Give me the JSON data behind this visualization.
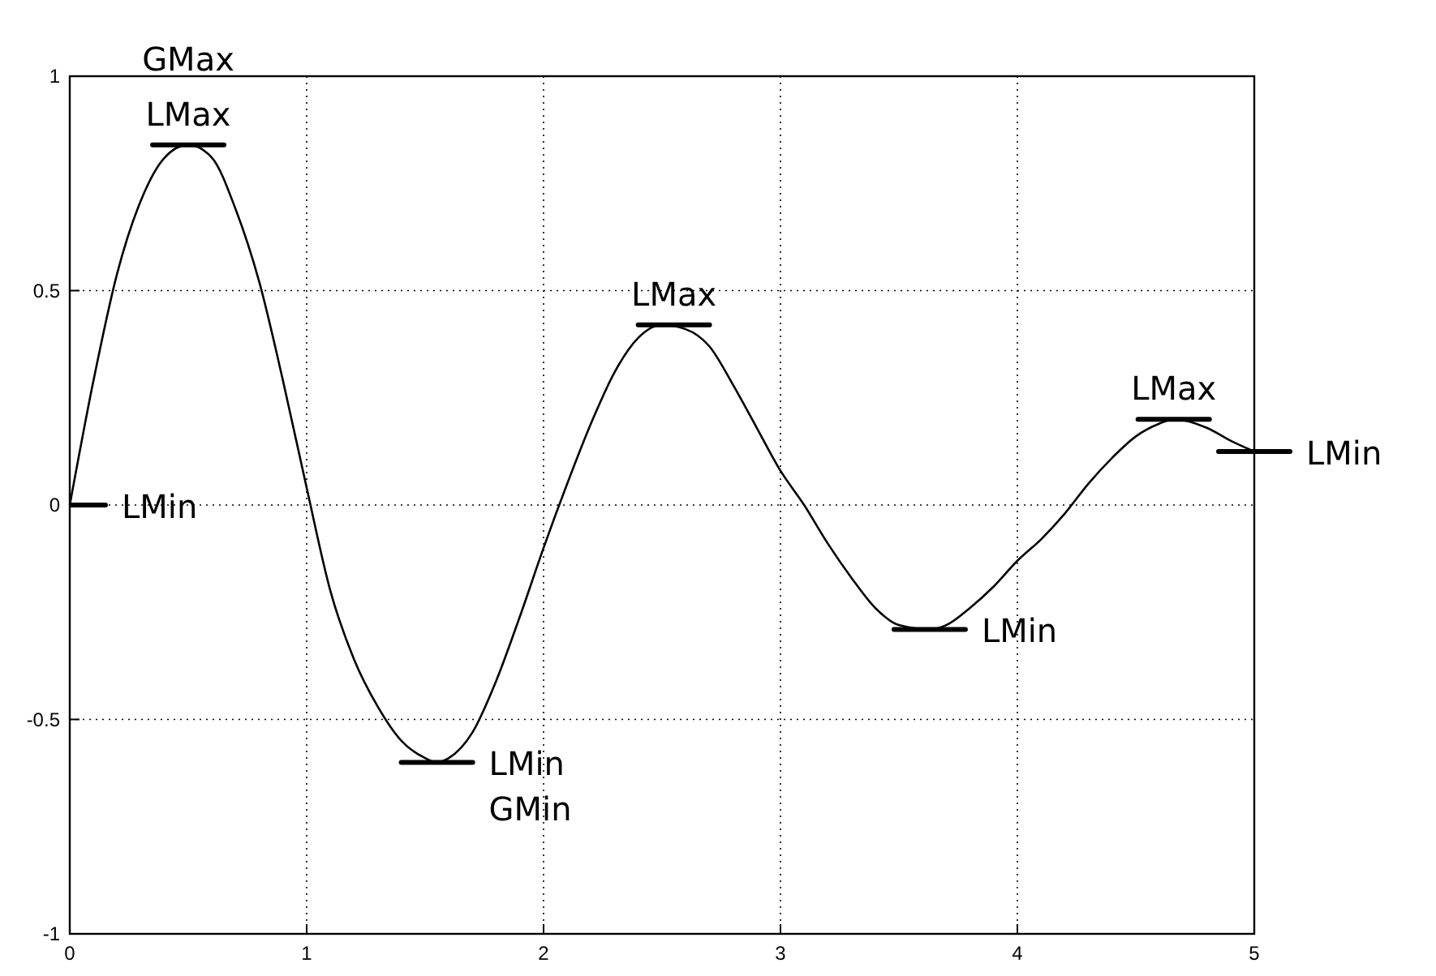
{
  "chart_data": {
    "type": "line",
    "x": [
      0,
      0.1,
      0.2,
      0.3,
      0.4,
      0.5,
      0.6,
      0.7,
      0.8,
      0.9,
      1.0,
      1.1,
      1.2,
      1.3,
      1.4,
      1.5,
      1.55,
      1.6,
      1.7,
      1.8,
      1.9,
      2.0,
      2.1,
      2.2,
      2.3,
      2.4,
      2.5,
      2.6,
      2.7,
      2.8,
      2.9,
      3.0,
      3.1,
      3.2,
      3.3,
      3.4,
      3.5,
      3.63,
      3.7,
      3.8,
      3.9,
      4.0,
      4.1,
      4.2,
      4.3,
      4.4,
      4.5,
      4.6,
      4.66,
      4.8,
      4.9,
      5.0
    ],
    "series": [
      {
        "color": "#000000",
        "values": [
          0,
          0.29,
          0.54,
          0.71,
          0.81,
          0.84,
          0.81,
          0.69,
          0.52,
          0.29,
          0.04,
          -0.2,
          -0.36,
          -0.47,
          -0.55,
          -0.59,
          -0.6,
          -0.59,
          -0.53,
          -0.41,
          -0.26,
          -0.1,
          0.05,
          0.19,
          0.31,
          0.39,
          0.42,
          0.41,
          0.37,
          0.28,
          0.18,
          0.08,
          0,
          -0.09,
          -0.17,
          -0.24,
          -0.28,
          -0.29,
          -0.28,
          -0.24,
          -0.19,
          -0.13,
          -0.08,
          -0.02,
          0.05,
          0.11,
          0.16,
          0.19,
          0.2,
          0.18,
          0.15,
          0.125
        ]
      }
    ],
    "xlim": [
      0,
      5
    ],
    "xticks": [
      0,
      1,
      2,
      3,
      4,
      5
    ],
    "ylim": [
      -1,
      1
    ],
    "yticks": [
      -1,
      -0.5,
      0,
      0.5,
      1
    ],
    "grid": true,
    "line_style": "solid",
    "marker": "none",
    "annotations": [
      {
        "text": "GMax",
        "x": 0.5,
        "y": 0.84
      },
      {
        "text": "LMax",
        "x": 0.5,
        "y": 0.84
      },
      {
        "text": "LMin",
        "x": 0,
        "y": 0
      },
      {
        "text": "LMin",
        "x": 1.55,
        "y": -0.6
      },
      {
        "text": "GMin",
        "x": 1.55,
        "y": -0.6
      },
      {
        "text": "LMax",
        "x": 2.55,
        "y": 0.42
      },
      {
        "text": "LMin",
        "x": 3.63,
        "y": -0.29
      },
      {
        "text": "LMax",
        "x": 4.66,
        "y": 0.2
      },
      {
        "text": "LMin",
        "x": 5,
        "y": 0.125
      }
    ]
  }
}
